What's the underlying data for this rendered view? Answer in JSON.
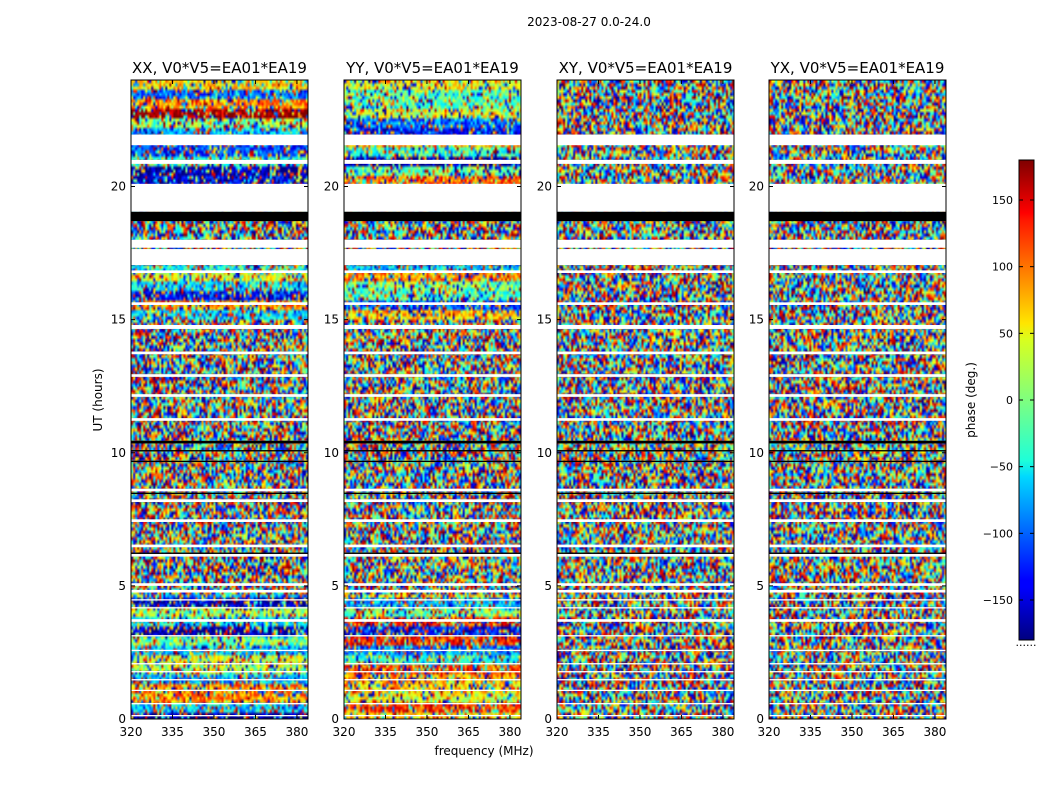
{
  "figure": {
    "suptitle": "2023-08-27 0.0-24.0",
    "xlabel": "frequency (MHz)",
    "ylabel": "UT (hours)",
    "colorbar_label": "phase (deg.)",
    "colorbar_dots": "......"
  },
  "colors": {
    "colormap": "jet",
    "flagged": "#ffffff",
    "black_band": "#000000"
  },
  "chart_data": {
    "type": "heatmap",
    "description_units": {
      "x": "MHz",
      "y": "hours",
      "value": "deg"
    },
    "xlim": [
      320,
      384
    ],
    "ylim": [
      0,
      24
    ],
    "xticks": [
      320,
      335,
      350,
      365,
      380
    ],
    "xtick_labels": [
      "320",
      "335",
      "350",
      "365",
      "380"
    ],
    "yticks": [
      0,
      5,
      10,
      15,
      20
    ],
    "ytick_labels": [
      "0",
      "5",
      "10",
      "15",
      "20"
    ],
    "value_range": [
      -180,
      180
    ],
    "colorbar_ticks": [
      150,
      100,
      50,
      0,
      -50,
      -100,
      -150
    ],
    "colorbar_tick_labels": [
      "150",
      "100",
      "50",
      "0",
      "−50",
      "−100",
      "−150"
    ],
    "flagged_time_ranges": [
      [
        21.55,
        21.95
      ],
      [
        20.85,
        21.0
      ],
      [
        19.05,
        20.1
      ],
      [
        17.7,
        18.0
      ],
      [
        17.05,
        17.65
      ],
      [
        16.75,
        16.85
      ],
      [
        15.55,
        15.65
      ],
      [
        14.65,
        14.8
      ],
      [
        13.7,
        13.8
      ],
      [
        12.85,
        12.95
      ],
      [
        12.1,
        12.2
      ],
      [
        11.2,
        11.3
      ],
      [
        8.55,
        8.65
      ],
      [
        8.15,
        8.25
      ],
      [
        7.4,
        7.5
      ],
      [
        6.45,
        6.55
      ],
      [
        6.1,
        6.2
      ],
      [
        5.0,
        5.1
      ],
      [
        4.75,
        4.85
      ],
      [
        4.45,
        4.5
      ],
      [
        4.15,
        4.2
      ],
      [
        3.65,
        3.75
      ],
      [
        3.1,
        3.15
      ],
      [
        2.55,
        2.6
      ],
      [
        2.05,
        2.1
      ],
      [
        1.75,
        1.8
      ],
      [
        1.45,
        1.5
      ],
      [
        1.05,
        1.1
      ],
      [
        0.55,
        0.6
      ],
      [
        0.1,
        0.15
      ]
    ],
    "black_time_ranges": [
      [
        18.7,
        19.05
      ],
      [
        10.35,
        10.45
      ],
      [
        10.05,
        10.1
      ],
      [
        9.65,
        9.7
      ],
      [
        8.45,
        8.5
      ],
      [
        6.2,
        6.25
      ]
    ],
    "panels": [
      {
        "title": "XX, V0*V5=EA01*EA19",
        "kind": "parallel"
      },
      {
        "title": "YY, V0*V5=EA01*EA19",
        "kind": "parallel"
      },
      {
        "title": "XY, V0*V5=EA01*EA19",
        "kind": "cross"
      },
      {
        "title": "YX, V0*V5=EA01*EA19",
        "kind": "cross"
      }
    ]
  }
}
